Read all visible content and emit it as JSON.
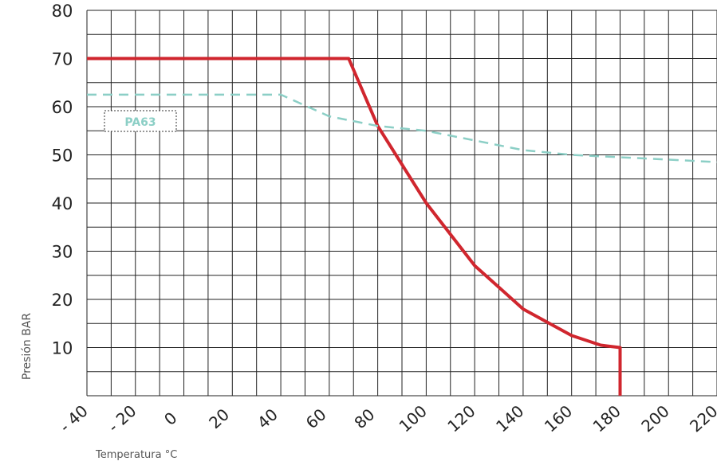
{
  "chart_data": {
    "type": "line",
    "xlabel": "Temperatura °C",
    "ylabel": "Presión BAR",
    "xlim": [
      -40,
      220
    ],
    "ylim": [
      0,
      80
    ],
    "x_ticks": [
      "- 40",
      "- 20",
      "0",
      "20",
      "40",
      "60",
      "80",
      "100",
      "120",
      "140",
      "160",
      "180",
      "200",
      "220"
    ],
    "y_ticks": [
      "80",
      "70",
      "60",
      "50",
      "40",
      "30",
      "20",
      "10"
    ],
    "grid": true,
    "legend_label": "PA63",
    "series": [
      {
        "color": "#d0262e",
        "style": "solid",
        "points": [
          [
            -40,
            70
          ],
          [
            68,
            70
          ],
          [
            80,
            56
          ],
          [
            100,
            40
          ],
          [
            120,
            27
          ],
          [
            140,
            18
          ],
          [
            160,
            12.5
          ],
          [
            172,
            10.5
          ],
          [
            180,
            10
          ],
          [
            180,
            0
          ]
        ]
      },
      {
        "color": "#8ccfc6",
        "style": "dashed",
        "points": [
          [
            -40,
            62.5
          ],
          [
            40,
            62.5
          ],
          [
            60,
            58
          ],
          [
            80,
            56
          ],
          [
            100,
            55
          ],
          [
            120,
            53
          ],
          [
            140,
            51
          ],
          [
            160,
            50
          ],
          [
            180,
            49.5
          ],
          [
            200,
            49
          ],
          [
            220,
            48.5
          ]
        ]
      }
    ]
  }
}
